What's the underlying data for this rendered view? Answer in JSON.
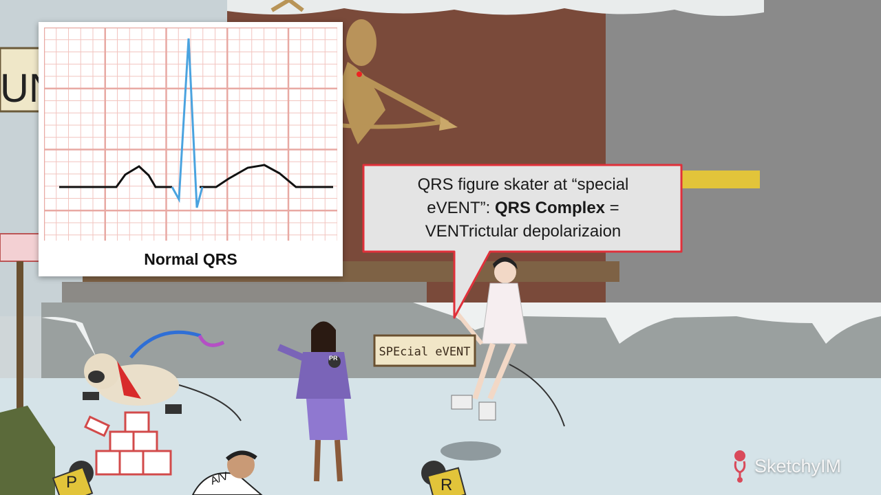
{
  "ecg_panel": {
    "label": "Normal QRS"
  },
  "callout": {
    "line1": "QRS figure skater at “special",
    "line2_prefix": "eVENT”: ",
    "line2_bold": "QRS Complex",
    "line2_suffix": " =",
    "line3": "VENTrictular depolarizaion"
  },
  "sign": {
    "text": "SPEcial eVENT"
  },
  "microphones": {
    "left": "P",
    "right": "R"
  },
  "reporter_badge": "PR",
  "shirt_letters": "A/V",
  "banner_text": "UN",
  "logo": {
    "name": "SketchyIM"
  },
  "colors": {
    "grid": "#e8a9a3",
    "qrs": "#4aa3df",
    "trace": "#111111",
    "callout_border": "#e0303a",
    "accent_yellow": "#e2c43a"
  }
}
